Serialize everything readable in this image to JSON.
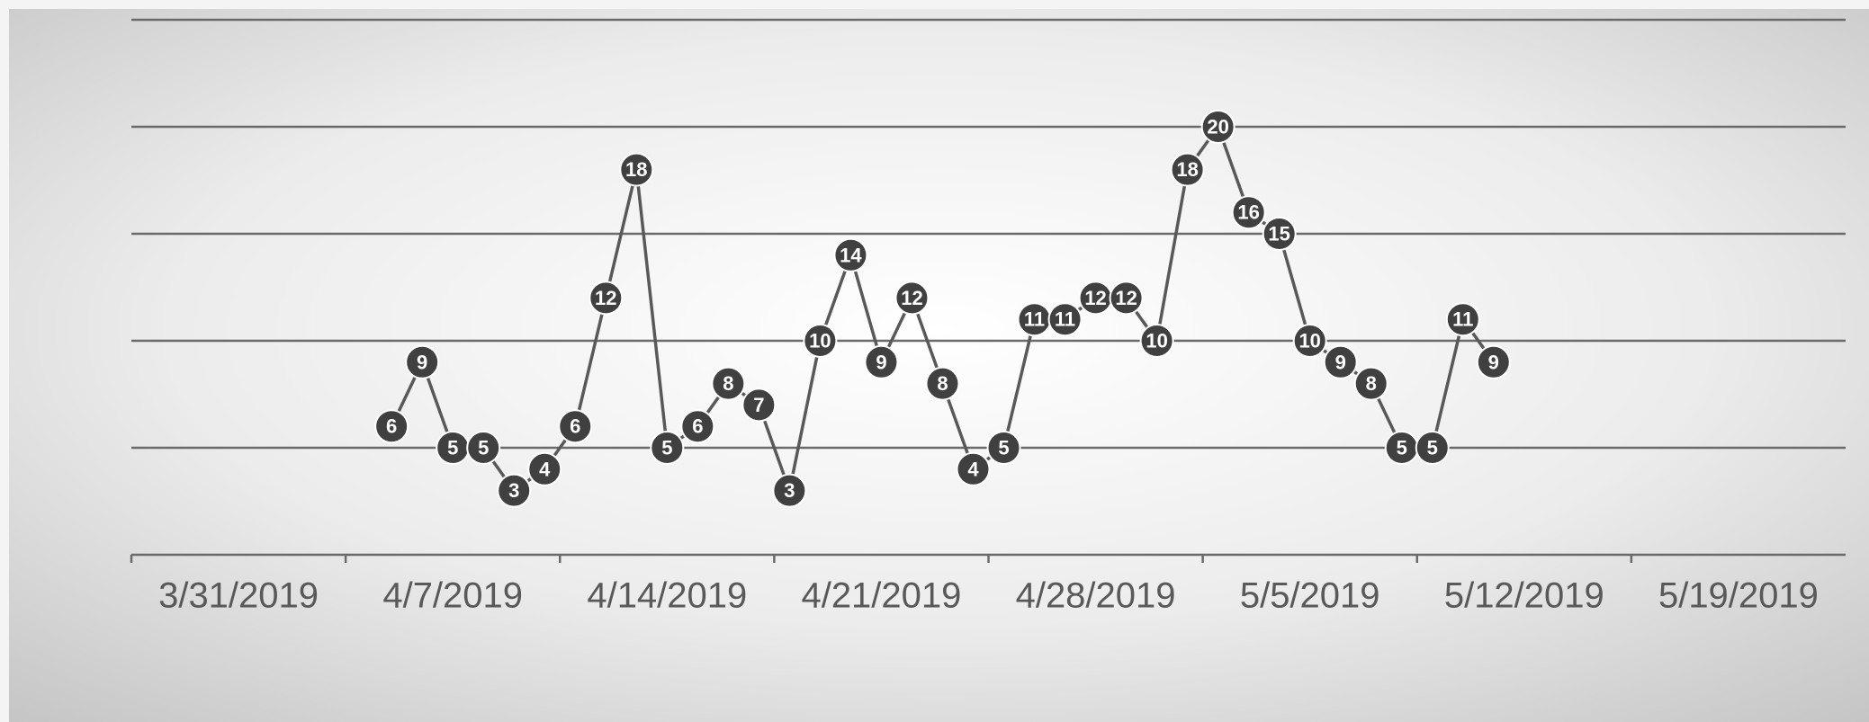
{
  "chart_data": {
    "type": "line",
    "x": [
      "2019-04-08",
      "2019-04-09",
      "2019-04-10",
      "2019-04-11",
      "2019-04-12",
      "2019-04-13",
      "2019-04-14",
      "2019-04-15",
      "2019-04-16",
      "2019-04-17",
      "2019-04-18",
      "2019-04-19",
      "2019-04-20",
      "2019-04-21",
      "2019-04-22",
      "2019-04-23",
      "2019-04-24",
      "2019-04-25",
      "2019-04-26",
      "2019-04-27",
      "2019-04-28",
      "2019-04-29",
      "2019-04-30",
      "2019-05-01",
      "2019-05-02",
      "2019-05-03",
      "2019-05-04",
      "2019-05-05",
      "2019-05-06",
      "2019-05-07",
      "2019-05-08",
      "2019-05-09",
      "2019-05-10",
      "2019-05-11",
      "2019-05-12",
      "2019-05-13",
      "2019-05-14"
    ],
    "values": [
      6,
      9,
      5,
      5,
      3,
      4,
      6,
      12,
      18,
      5,
      6,
      8,
      7,
      3,
      10,
      14,
      9,
      12,
      8,
      4,
      5,
      11,
      11,
      12,
      12,
      10,
      18,
      20,
      16,
      15,
      10,
      9,
      8,
      5,
      5,
      11,
      9
    ],
    "color": "#404040",
    "xlim": [
      "2019-03-31",
      "2019-05-26"
    ],
    "xticks": [
      {
        "value": "2019-03-31",
        "label": "3/31/2019"
      },
      {
        "value": "2019-04-07",
        "label": "4/7/2019"
      },
      {
        "value": "2019-04-14",
        "label": "4/14/2019"
      },
      {
        "value": "2019-04-21",
        "label": "4/21/2019"
      },
      {
        "value": "2019-04-28",
        "label": "4/28/2019"
      },
      {
        "value": "2019-05-05",
        "label": "5/5/2019"
      },
      {
        "value": "2019-05-12",
        "label": "5/12/2019"
      },
      {
        "value": "2019-05-19",
        "label": "5/19/2019"
      }
    ],
    "ylim": [
      0,
      25
    ],
    "yticks": [
      0,
      5,
      10,
      15,
      20,
      25
    ],
    "grid": true,
    "data_labels": true
  }
}
